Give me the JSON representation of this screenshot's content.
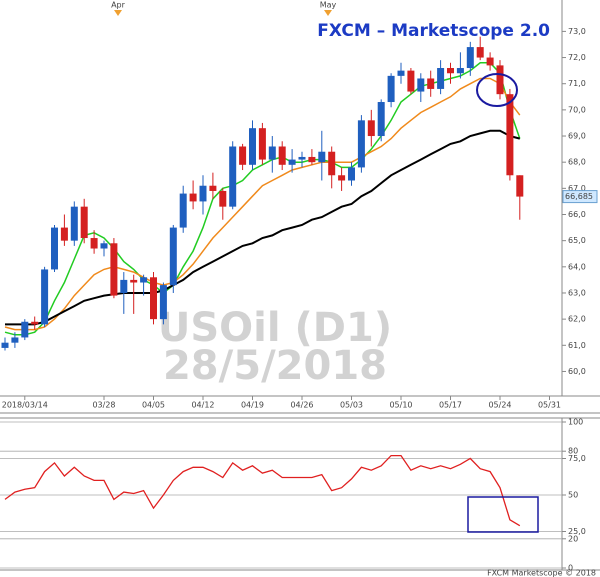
{
  "chart_data": [
    {
      "type": "candlestick",
      "title": "FXCM  – Marketscope 2.0",
      "watermark": [
        "USOil (D1)",
        "28/5/2018"
      ],
      "top_labels": [
        "Apr",
        "May"
      ],
      "categories": [
        null,
        null,
        "2018/03/14",
        null,
        null,
        null,
        null,
        null,
        null,
        null,
        "03/28",
        null,
        null,
        null,
        null,
        "04/05",
        null,
        null,
        null,
        null,
        "04/12",
        null,
        null,
        null,
        null,
        "04/19",
        null,
        null,
        null,
        null,
        "04/26",
        null,
        null,
        null,
        null,
        "05/03",
        null,
        null,
        null,
        null,
        "05/10",
        null,
        null,
        null,
        null,
        "05/17",
        null,
        null,
        null,
        null,
        "05/24",
        null,
        null,
        null,
        null,
        "05/31"
      ],
      "open": [
        60.9,
        61.1,
        61.3,
        61.9,
        61.8,
        63.9,
        65.5,
        65.0,
        66.3,
        65.1,
        64.7,
        64.9,
        63.0,
        63.5,
        63.4,
        63.6,
        62.0,
        63.3,
        65.5,
        66.8,
        66.5,
        67.1,
        66.9,
        66.3,
        68.6,
        67.9,
        69.3,
        68.1,
        68.6,
        67.9,
        68.1,
        68.2,
        68.0,
        68.4,
        67.5,
        67.3,
        67.8,
        69.6,
        69.0,
        70.3,
        71.3,
        71.5,
        70.7,
        71.2,
        70.8,
        71.6,
        71.4,
        71.6,
        72.4,
        72.0,
        71.7,
        70.6,
        67.5,
        null,
        null,
        null
      ],
      "high": [
        61.3,
        61.5,
        62.0,
        62.1,
        64.0,
        65.6,
        66.0,
        66.5,
        66.6,
        65.4,
        65.0,
        65.1,
        63.8,
        63.7,
        63.7,
        63.8,
        63.4,
        65.6,
        67.1,
        67.3,
        67.5,
        67.6,
        67.0,
        68.8,
        68.7,
        69.6,
        69.5,
        69.0,
        68.8,
        68.5,
        68.4,
        68.5,
        69.2,
        68.6,
        67.8,
        68.0,
        69.8,
        70.0,
        70.4,
        71.4,
        71.8,
        71.6,
        71.4,
        71.5,
        71.9,
        71.8,
        72.2,
        72.6,
        72.8,
        72.2,
        71.9,
        70.8,
        67.5,
        null,
        null,
        null
      ],
      "low": [
        60.8,
        60.9,
        61.2,
        61.6,
        61.7,
        63.8,
        64.8,
        64.8,
        64.9,
        64.5,
        64.4,
        62.8,
        62.2,
        62.2,
        62.9,
        61.8,
        61.8,
        63.0,
        65.3,
        66.2,
        66.0,
        66.6,
        65.8,
        66.2,
        67.7,
        67.7,
        67.9,
        67.6,
        67.7,
        67.6,
        67.8,
        67.9,
        67.3,
        67.0,
        66.9,
        67.1,
        67.6,
        68.6,
        68.8,
        70.1,
        71.0,
        70.6,
        70.3,
        70.5,
        70.6,
        71.0,
        71.2,
        71.3,
        71.9,
        71.5,
        70.4,
        67.3,
        65.8,
        null,
        null,
        null
      ],
      "close": [
        61.1,
        61.3,
        61.9,
        61.8,
        63.9,
        65.5,
        65.0,
        66.3,
        65.1,
        64.7,
        64.9,
        62.9,
        63.5,
        63.4,
        63.6,
        62.0,
        63.3,
        65.5,
        66.8,
        66.5,
        67.1,
        66.9,
        66.3,
        68.6,
        67.9,
        69.3,
        68.1,
        68.6,
        67.9,
        68.1,
        68.2,
        68.0,
        68.4,
        67.5,
        67.3,
        67.8,
        69.6,
        69.0,
        70.3,
        71.3,
        71.5,
        70.7,
        71.2,
        70.8,
        71.6,
        71.4,
        71.6,
        72.4,
        72.0,
        71.7,
        70.6,
        67.5,
        66.685,
        null,
        null,
        null
      ],
      "up_color": "#1f5fbf",
      "down_color": "#d42020",
      "lines": [
        {
          "color": "#22cc22",
          "values": [
            61.5,
            61.4,
            61.4,
            61.5,
            61.9,
            62.7,
            63.4,
            64.3,
            65.2,
            65.3,
            65.1,
            64.7,
            64.2,
            63.9,
            63.5,
            63.3,
            63.0,
            63.3,
            64.0,
            64.6,
            65.5,
            66.6,
            67.0,
            67.1,
            67.3,
            67.7,
            67.9,
            68.1,
            68.2,
            68.0,
            68.0,
            68.1,
            68.1,
            68.0,
            67.8,
            67.8,
            68.1,
            68.5,
            69.0,
            69.6,
            70.3,
            70.6,
            70.9,
            71.0,
            71.1,
            71.2,
            71.3,
            71.5,
            71.8,
            71.8,
            71.4,
            70.0,
            68.9,
            null,
            null,
            null
          ]
        },
        {
          "color": "#f08a1c",
          "values": [
            61.7,
            61.6,
            61.6,
            61.6,
            61.7,
            62.0,
            62.4,
            62.9,
            63.3,
            63.7,
            63.9,
            64.0,
            63.9,
            63.8,
            63.6,
            63.4,
            63.3,
            63.4,
            63.7,
            64.1,
            64.6,
            65.1,
            65.5,
            65.9,
            66.3,
            66.7,
            67.1,
            67.3,
            67.5,
            67.7,
            67.8,
            67.9,
            68.0,
            68.0,
            68.0,
            68.0,
            68.2,
            68.4,
            68.6,
            68.9,
            69.3,
            69.6,
            69.9,
            70.1,
            70.3,
            70.5,
            70.8,
            71.0,
            71.2,
            71.2,
            71.0,
            70.3,
            69.8,
            null,
            null,
            null
          ]
        },
        {
          "color": "#000000",
          "values": [
            61.8,
            61.8,
            61.8,
            61.8,
            61.9,
            62.1,
            62.3,
            62.5,
            62.7,
            62.8,
            62.9,
            62.95,
            63.0,
            63.0,
            63.0,
            63.0,
            63.1,
            63.3,
            63.5,
            63.8,
            64.0,
            64.2,
            64.4,
            64.6,
            64.8,
            64.9,
            65.1,
            65.2,
            65.4,
            65.5,
            65.6,
            65.8,
            65.9,
            66.1,
            66.3,
            66.4,
            66.7,
            66.9,
            67.2,
            67.5,
            67.7,
            67.9,
            68.1,
            68.3,
            68.5,
            68.7,
            68.8,
            69.0,
            69.1,
            69.2,
            69.2,
            69.0,
            68.9,
            null,
            null,
            null
          ]
        }
      ],
      "price_marker": {
        "value": 66.685,
        "label": "66,685"
      },
      "ylim": [
        59.1,
        74.2
      ],
      "yticks": [
        {
          "value": 60,
          "label": "60,0"
        },
        {
          "value": 61,
          "label": "61,0"
        },
        {
          "value": 62,
          "label": "62,0"
        },
        {
          "value": 63,
          "label": "63,0"
        },
        {
          "value": 64,
          "label": "64,0"
        },
        {
          "value": 65,
          "label": "65,0"
        },
        {
          "value": 66,
          "label": "66,0"
        },
        {
          "value": 67,
          "label": "67,0"
        },
        {
          "value": 68,
          "label": "68,0"
        },
        {
          "value": 69,
          "label": "69,0"
        },
        {
          "value": 70,
          "label": "70,0"
        },
        {
          "value": 71,
          "label": "71,0"
        },
        {
          "value": 72,
          "label": "72,0"
        },
        {
          "value": 73,
          "label": "73,0"
        }
      ],
      "grid": false
    },
    {
      "type": "line",
      "values": [
        47,
        52,
        54,
        55,
        66,
        72,
        63,
        69,
        63,
        60,
        60,
        47,
        52,
        51,
        53,
        41,
        50,
        60,
        66,
        69,
        69,
        66,
        62,
        72,
        67,
        70,
        65,
        67,
        62,
        62,
        62,
        62,
        64,
        53,
        55,
        61,
        69,
        67,
        70,
        77,
        77,
        67,
        70,
        68,
        70,
        68,
        71,
        75,
        68,
        66,
        55,
        33,
        29,
        null,
        null,
        null
      ],
      "color": "#e02020",
      "ylim": [
        0,
        100
      ],
      "yticks": [
        100,
        80,
        {
          "value": 75,
          "label": "75,0"
        },
        50,
        {
          "value": 25,
          "label": "25,0"
        },
        20,
        0
      ],
      "grid": true,
      "footer": "FXCM Marketscope © 2018"
    }
  ]
}
